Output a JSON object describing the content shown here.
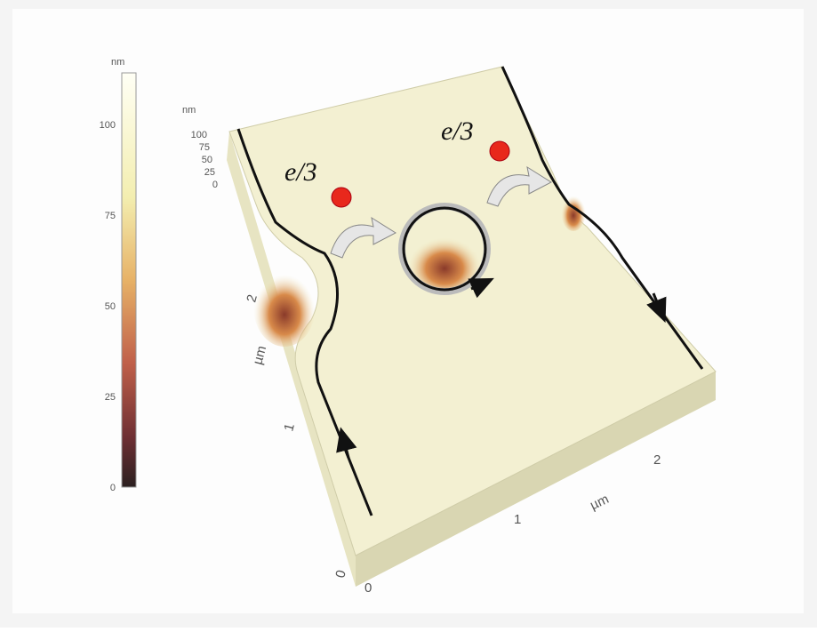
{
  "colorbar": {
    "unit": "nm",
    "ticks": [
      "100",
      "75",
      "50",
      "25",
      "0"
    ]
  },
  "z_axis": {
    "unit": "nm",
    "ticks": [
      "100",
      "75",
      "50",
      "25",
      "0"
    ]
  },
  "y_axis": {
    "unit": "µm",
    "ticks": [
      "0",
      "1",
      "2"
    ]
  },
  "x_axis": {
    "unit": "µm",
    "ticks": [
      "0",
      "1",
      "2"
    ]
  },
  "labels": [
    "e/3",
    "e/3"
  ]
}
